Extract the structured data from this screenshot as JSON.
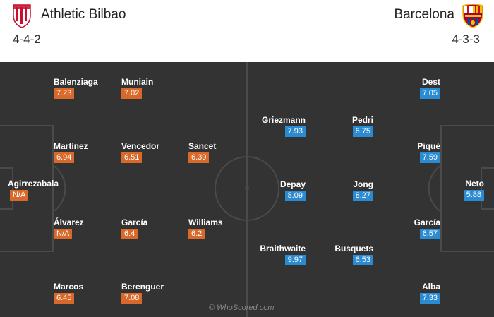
{
  "home": {
    "name": "Athletic Bilbao",
    "formation": "4-4-2",
    "color": "#d9682b",
    "players": [
      {
        "name": "Agirrezabala",
        "rating": "N/A"
      },
      {
        "name": "Balenziaga",
        "rating": "7.23"
      },
      {
        "name": "Martínez",
        "rating": "6.94"
      },
      {
        "name": "Álvarez",
        "rating": "N/A"
      },
      {
        "name": "Marcos",
        "rating": "6.45"
      },
      {
        "name": "Muniain",
        "rating": "7.02"
      },
      {
        "name": "Vencedor",
        "rating": "6.51"
      },
      {
        "name": "García",
        "rating": "6.4"
      },
      {
        "name": "Berenguer",
        "rating": "7.08"
      },
      {
        "name": "Sancet",
        "rating": "6.39"
      },
      {
        "name": "Williams",
        "rating": "6.2"
      }
    ]
  },
  "away": {
    "name": "Barcelona",
    "formation": "4-3-3",
    "color": "#2a8bd3",
    "players": [
      {
        "name": "Neto",
        "rating": "5.88"
      },
      {
        "name": "Dest",
        "rating": "7.05"
      },
      {
        "name": "Piqué",
        "rating": "7.59"
      },
      {
        "name": "García",
        "rating": "6.57"
      },
      {
        "name": "Alba",
        "rating": "7.33"
      },
      {
        "name": "Pedri",
        "rating": "6.75"
      },
      {
        "name": "Jong",
        "rating": "8.27"
      },
      {
        "name": "Busquets",
        "rating": "6.53"
      },
      {
        "name": "Griezmann",
        "rating": "7.93"
      },
      {
        "name": "Depay",
        "rating": "8.09"
      },
      {
        "name": "Braithwaite",
        "rating": "9.97"
      }
    ]
  },
  "watermark": "© WhoScored.com",
  "pitch_color": "#333333"
}
